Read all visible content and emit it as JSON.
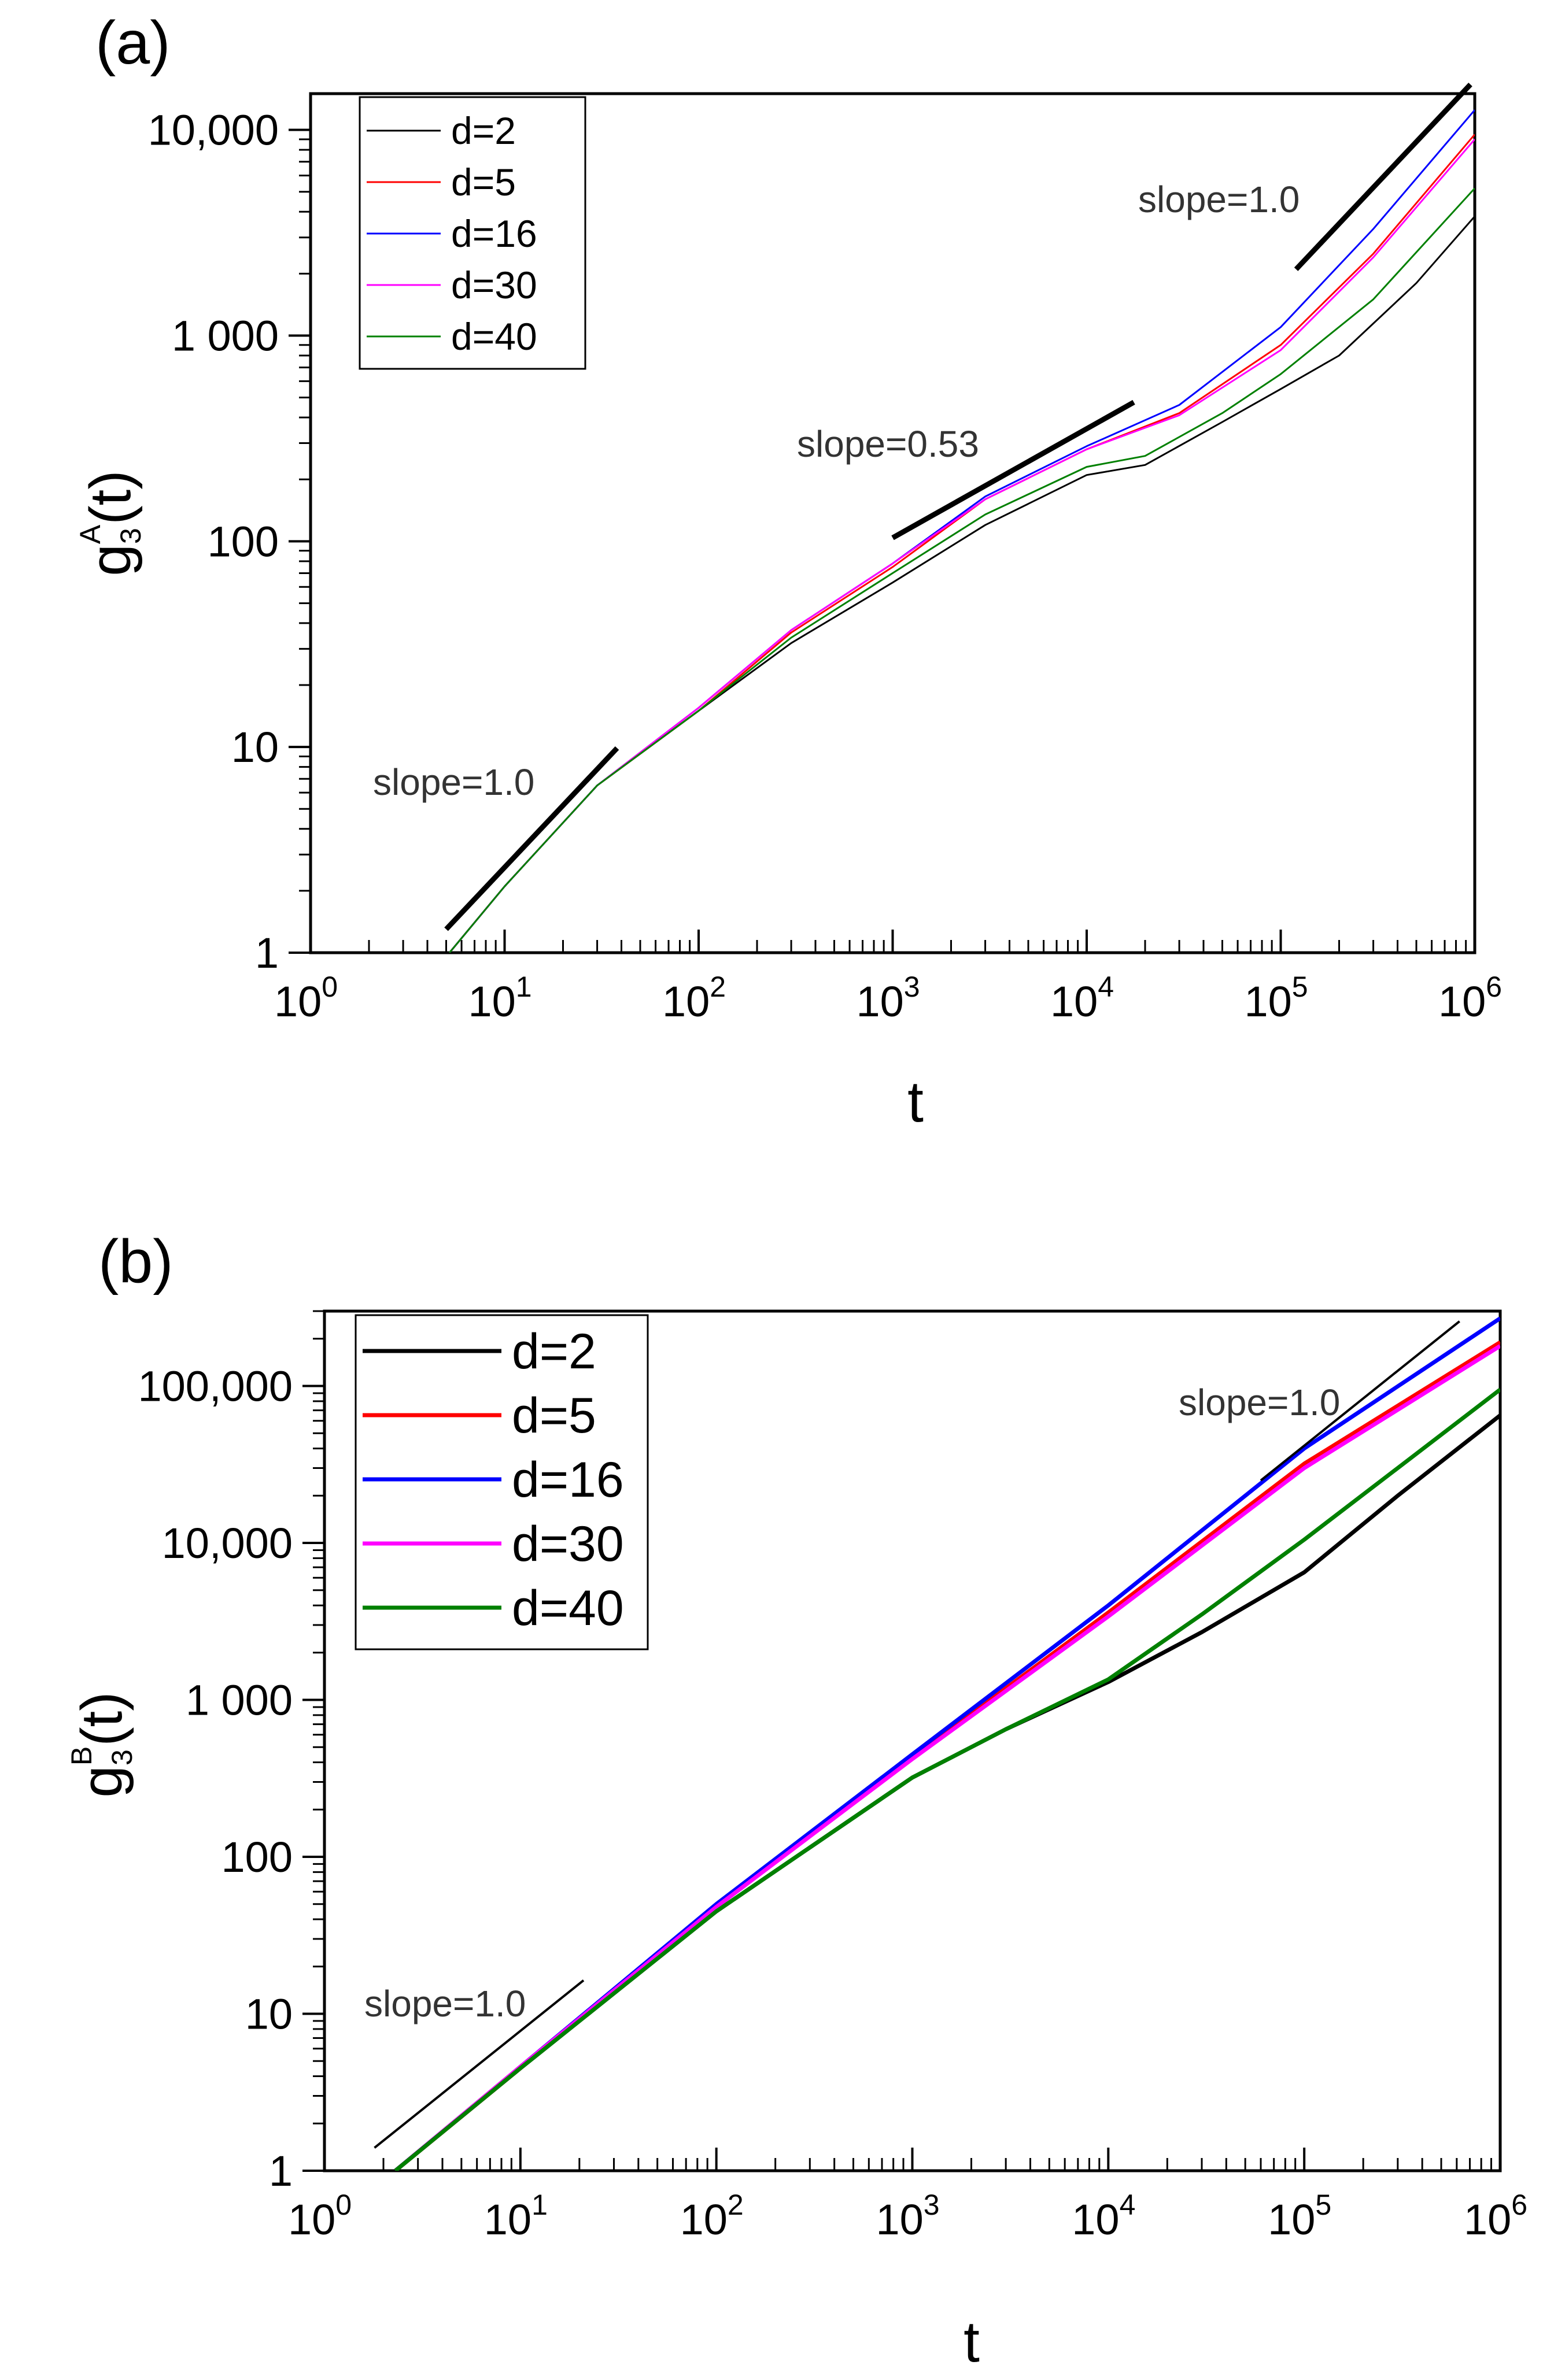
{
  "chart_data": [
    {
      "panel_label": "(a)",
      "type": "line",
      "xscale": "log",
      "yscale": "log",
      "xlim": [
        1,
        1000000
      ],
      "ylim": [
        1,
        15000
      ],
      "xlabel": "t",
      "ylabel": "g3A(t)",
      "ylabel_parts": {
        "base": "g",
        "sub": "3",
        "sup": "A",
        "tail": "(t)"
      },
      "xticks": [
        {
          "base": "10",
          "exp": "0"
        },
        {
          "base": "10",
          "exp": "1"
        },
        {
          "base": "10",
          "exp": "2"
        },
        {
          "base": "10",
          "exp": "3"
        },
        {
          "base": "10",
          "exp": "4"
        },
        {
          "base": "10",
          "exp": "5"
        },
        {
          "base": "10",
          "exp": "6"
        }
      ],
      "yticks": [
        {
          "value": 1,
          "label": "1"
        },
        {
          "value": 10,
          "label": "10"
        },
        {
          "value": 100,
          "label": "100"
        },
        {
          "value": 1000,
          "label": "1 000"
        },
        {
          "value": 10000,
          "label": "10,000"
        }
      ],
      "legend_position": "top-left",
      "series": [
        {
          "name": "d=2",
          "color": "#000000",
          "points": [
            [
              5.2,
              1
            ],
            [
              10,
              2.1
            ],
            [
              30,
              6.5
            ],
            [
              100,
              15
            ],
            [
              300,
              32
            ],
            [
              1000,
              63
            ],
            [
              3000,
              120
            ],
            [
              10000,
              210
            ],
            [
              20000,
              235
            ],
            [
              50000,
              380
            ],
            [
              100000,
              550
            ],
            [
              200000,
              800
            ],
            [
              500000,
              1800
            ],
            [
              1000000,
              3800
            ]
          ]
        },
        {
          "name": "d=5",
          "color": "#ff0000",
          "points": [
            [
              5.2,
              1
            ],
            [
              10,
              2.1
            ],
            [
              30,
              6.5
            ],
            [
              100,
              15
            ],
            [
              300,
              36
            ],
            [
              1000,
              75
            ],
            [
              3000,
              160
            ],
            [
              10000,
              280
            ],
            [
              30000,
              420
            ],
            [
              100000,
              900
            ],
            [
              300000,
              2500
            ],
            [
              1000000,
              9500
            ]
          ]
        },
        {
          "name": "d=16",
          "color": "#0000ff",
          "points": [
            [
              5.2,
              1
            ],
            [
              10,
              2.1
            ],
            [
              30,
              6.5
            ],
            [
              100,
              15.5
            ],
            [
              300,
              37
            ],
            [
              1000,
              78
            ],
            [
              3000,
              165
            ],
            [
              10000,
              290
            ],
            [
              30000,
              460
            ],
            [
              100000,
              1100
            ],
            [
              300000,
              3300
            ],
            [
              1000000,
              12500
            ]
          ]
        },
        {
          "name": "d=30",
          "color": "#ff00ff",
          "points": [
            [
              5.2,
              1
            ],
            [
              10,
              2.1
            ],
            [
              30,
              6.5
            ],
            [
              100,
              15.5
            ],
            [
              300,
              37
            ],
            [
              1000,
              78
            ],
            [
              3000,
              160
            ],
            [
              10000,
              280
            ],
            [
              30000,
              410
            ],
            [
              100000,
              850
            ],
            [
              300000,
              2400
            ],
            [
              1000000,
              9000
            ]
          ]
        },
        {
          "name": "d=40",
          "color": "#008000",
          "points": [
            [
              5.2,
              1
            ],
            [
              10,
              2.1
            ],
            [
              30,
              6.5
            ],
            [
              100,
              15
            ],
            [
              300,
              34
            ],
            [
              1000,
              70
            ],
            [
              3000,
              135
            ],
            [
              10000,
              230
            ],
            [
              20000,
              260
            ],
            [
              50000,
              420
            ],
            [
              100000,
              650
            ],
            [
              300000,
              1500
            ],
            [
              1000000,
              5200
            ]
          ]
        }
      ],
      "slope_lines": [
        {
          "label": "slope=1.0",
          "slope": 1.0,
          "x": [
            5,
            38
          ],
          "y0": 1.3
        },
        {
          "label": "slope=0.53",
          "slope": 0.53,
          "x": [
            1000,
            17500
          ],
          "y0": 104
        },
        {
          "label": "slope=1.0",
          "slope": 1.0,
          "x": [
            120000,
            950000
          ],
          "y0": 2100
        }
      ]
    },
    {
      "panel_label": "(b)",
      "type": "line",
      "xscale": "log",
      "yscale": "log",
      "xlim": [
        1,
        1000000
      ],
      "ylim": [
        1,
        300000
      ],
      "xlabel": "t",
      "ylabel": "g3B(t)",
      "ylabel_parts": {
        "base": "g",
        "sub": "3",
        "sup": "B",
        "tail": "(t)"
      },
      "xticks": [
        {
          "base": "10",
          "exp": "0"
        },
        {
          "base": "10",
          "exp": "1"
        },
        {
          "base": "10",
          "exp": "2"
        },
        {
          "base": "10",
          "exp": "3"
        },
        {
          "base": "10",
          "exp": "4"
        },
        {
          "base": "10",
          "exp": "5"
        },
        {
          "base": "10",
          "exp": "6"
        }
      ],
      "yticks": [
        {
          "value": 1,
          "label": "1"
        },
        {
          "value": 10,
          "label": "10"
        },
        {
          "value": 100,
          "label": "100"
        },
        {
          "value": 1000,
          "label": "1 000"
        },
        {
          "value": 10000,
          "label": "10,000"
        },
        {
          "value": 100000,
          "label": "100,000"
        }
      ],
      "legend_position": "top-left",
      "series": [
        {
          "name": "d=2",
          "color": "#000000",
          "points": [
            [
              2.3,
              1
            ],
            [
              10,
              4.5
            ],
            [
              100,
              45
            ],
            [
              1000,
              320
            ],
            [
              3000,
              650
            ],
            [
              10000,
              1300
            ],
            [
              30000,
              2700
            ],
            [
              100000,
              6500
            ],
            [
              300000,
              20000
            ],
            [
              1000000,
              65000
            ]
          ]
        },
        {
          "name": "d=5",
          "color": "#ff0000",
          "points": [
            [
              2.3,
              1
            ],
            [
              10,
              4.5
            ],
            [
              100,
              48
            ],
            [
              1000,
              430
            ],
            [
              10000,
              3600
            ],
            [
              100000,
              32000
            ],
            [
              1000000,
              190000
            ]
          ]
        },
        {
          "name": "d=16",
          "color": "#0000ff",
          "points": [
            [
              2.3,
              1
            ],
            [
              10,
              4.6
            ],
            [
              100,
              50
            ],
            [
              1000,
              450
            ],
            [
              10000,
              4000
            ],
            [
              100000,
              40000
            ],
            [
              1000000,
              270000
            ]
          ]
        },
        {
          "name": "d=30",
          "color": "#ff00ff",
          "points": [
            [
              2.3,
              1
            ],
            [
              10,
              4.6
            ],
            [
              100,
              48
            ],
            [
              1000,
              420
            ],
            [
              10000,
              3400
            ],
            [
              100000,
              30000
            ],
            [
              1000000,
              180000
            ]
          ]
        },
        {
          "name": "d=40",
          "color": "#008000",
          "points": [
            [
              2.3,
              1
            ],
            [
              10,
              4.5
            ],
            [
              100,
              45
            ],
            [
              1000,
              320
            ],
            [
              3000,
              650
            ],
            [
              10000,
              1350
            ],
            [
              30000,
              3500
            ],
            [
              100000,
              10500
            ],
            [
              300000,
              30000
            ],
            [
              1000000,
              95000
            ]
          ]
        }
      ],
      "slope_lines": [
        {
          "label": "slope=1.0",
          "slope": 1.0,
          "x": [
            1.8,
            21
          ],
          "y0": 1.4
        },
        {
          "label": "slope=1.0",
          "slope": 1.0,
          "x": [
            60000,
            620000
          ],
          "y0": 25000
        }
      ]
    }
  ]
}
